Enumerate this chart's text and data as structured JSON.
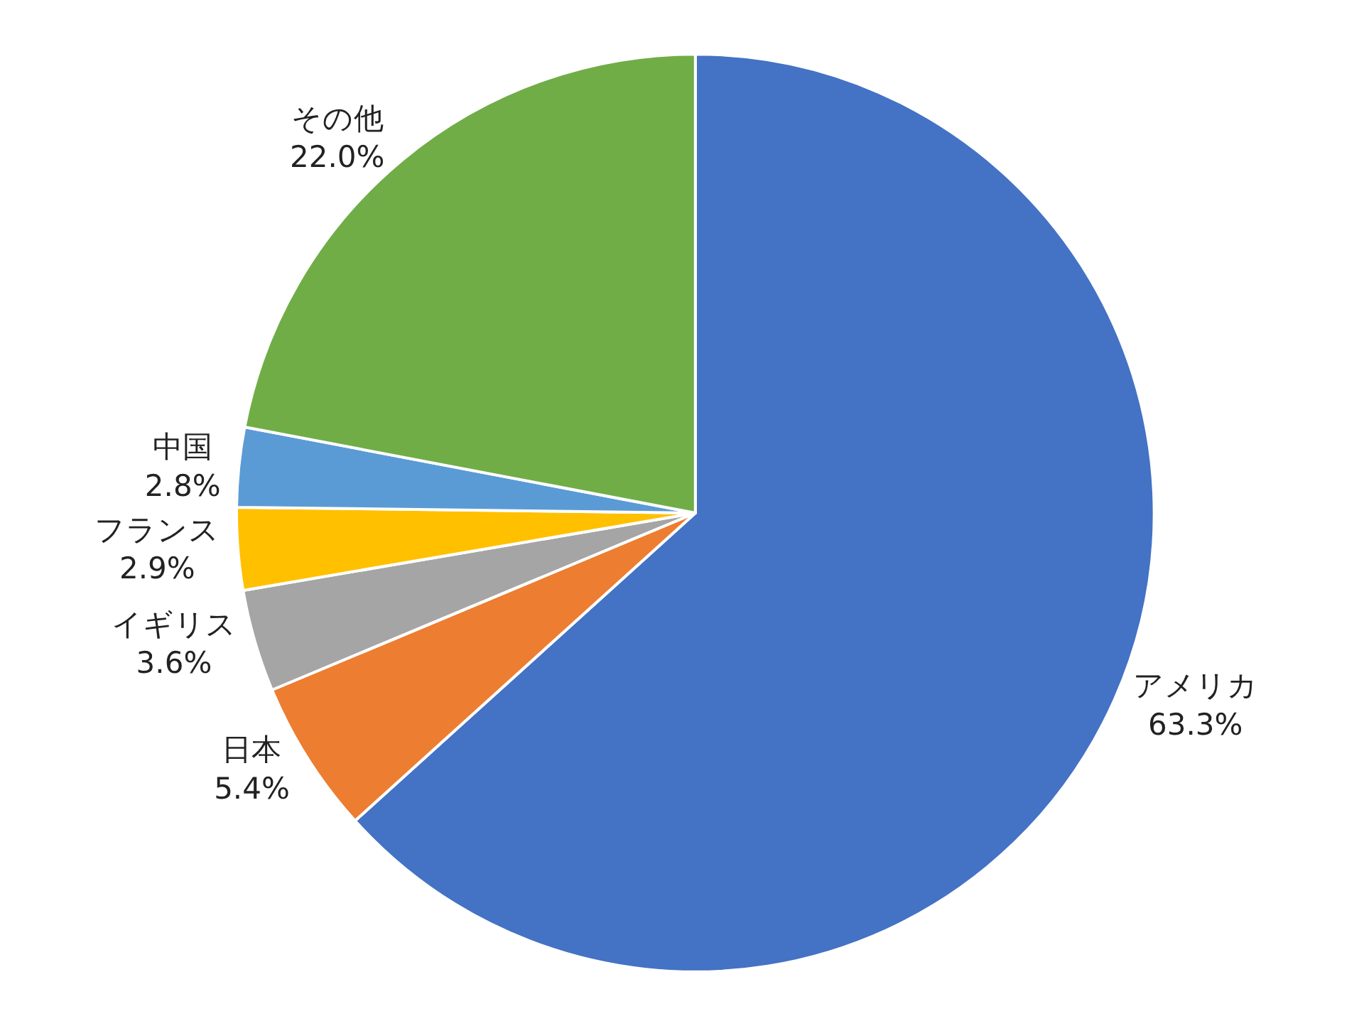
{
  "chart_data": {
    "type": "pie",
    "categories": [
      "アメリカ",
      "日本",
      "イギリス",
      "フランス",
      "中国",
      "その他"
    ],
    "values": [
      63.3,
      5.4,
      3.6,
      2.9,
      2.8,
      22.0
    ],
    "value_labels": [
      "63.3%",
      "5.4%",
      "3.6%",
      "2.9%",
      "2.8%",
      "22.0%"
    ],
    "colors": [
      "#4472c4",
      "#ed7d31",
      "#a5a5a5",
      "#ffc000",
      "#5b9bd5",
      "#70ad47"
    ],
    "legend": false
  }
}
